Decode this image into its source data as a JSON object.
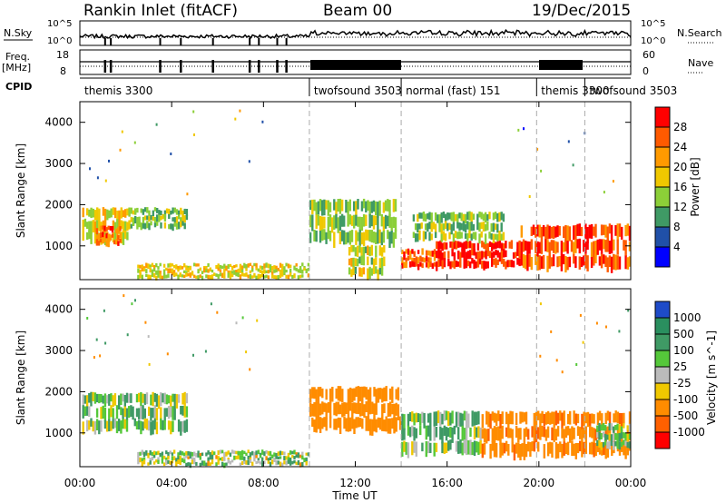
{
  "header": {
    "station": "Rankin Inlet (fitACF)",
    "beam": "Beam 00",
    "date": "19/Dec/2015"
  },
  "strip": {
    "nsky_label": "N.Sky",
    "nsky_top": "10^5",
    "nsky_bottom": "10^0",
    "nsearch_label": "N.Search",
    "nsearch_top": "10^5",
    "nsearch_bottom": "10^0",
    "freq_label": "Freq.",
    "freq_unit": "[MHz]",
    "freq_top": "18",
    "freq_bottom": "8",
    "nave_label": "Nave",
    "nave_top": "60",
    "nave_bottom": "0",
    "cpid_label": "CPID",
    "cpid_segments": [
      {
        "label": "themis 3300",
        "start": 0.0
      },
      {
        "label": "twofsound 3503",
        "start": 10.0
      },
      {
        "label": "normal (fast) 151",
        "start": 14.0
      },
      {
        "label": "themis 3300",
        "start": 19.9
      },
      {
        "label": "twofsound 3503",
        "start": 22.0
      }
    ]
  },
  "panels": {
    "power": {
      "ylabel": "Slant Range [km]",
      "colorbar_label": "Power [dB]",
      "colorbar_ticks": [
        "28",
        "24",
        "20",
        "16",
        "12",
        "8",
        "4"
      ],
      "colorbar_colors": [
        "#ff0000",
        "#ff5a00",
        "#ff9a00",
        "#f0c800",
        "#8ccf38",
        "#3f9a65",
        "#2050a8",
        "#0000ff"
      ]
    },
    "velocity": {
      "ylabel": "Slant Range [km]",
      "colorbar_label": "Velocity [m s^-1]",
      "colorbar_ticks": [
        "1000",
        "500",
        "100",
        "25",
        "-25",
        "-100",
        "-500",
        "-1000"
      ],
      "colorbar_colors": [
        "#1e4bc8",
        "#2a8f5f",
        "#3f9a65",
        "#55c83a",
        "#bbbbbb",
        "#f0c800",
        "#ff8c00",
        "#ff6000",
        "#ff0000"
      ]
    }
  },
  "xaxis": {
    "label": "Time UT",
    "ticks": [
      "00:00",
      "04:00",
      "08:00",
      "12:00",
      "16:00",
      "20:00",
      "00:00"
    ]
  },
  "chart_data": {
    "type": "heatmap",
    "x_range_hours": [
      0,
      24
    ],
    "y_range_km": [
      180,
      4500
    ],
    "yticks": [
      1000,
      2000,
      3000,
      4000
    ],
    "xlabel": "Time UT",
    "ylabel": "Slant Range [km]",
    "mode_boundaries_hours": [
      10.0,
      14.0,
      19.9,
      22.0
    ],
    "power_regions": [
      {
        "t0": 0.1,
        "t1": 2.2,
        "r0": 1050,
        "r1": 1900,
        "value_db": 18
      },
      {
        "t0": 0.7,
        "t1": 1.8,
        "r0": 1000,
        "r1": 1450,
        "value_db": 25
      },
      {
        "t0": 2.2,
        "t1": 4.7,
        "r0": 1400,
        "r1": 1900,
        "value_db": 13
      },
      {
        "t0": 2.5,
        "t1": 10.0,
        "r0": 200,
        "r1": 550,
        "value_db": 17
      },
      {
        "t0": 10.0,
        "t1": 13.8,
        "r0": 1000,
        "r1": 2100,
        "value_db": 14
      },
      {
        "t0": 11.7,
        "t1": 13.3,
        "r0": 200,
        "r1": 1000,
        "value_db": 16
      },
      {
        "t0": 14.0,
        "t1": 15.5,
        "r0": 450,
        "r1": 900,
        "value_db": 26
      },
      {
        "t0": 15.5,
        "t1": 19.2,
        "r0": 450,
        "r1": 1100,
        "value_db": 29
      },
      {
        "t0": 19.2,
        "t1": 24.0,
        "r0": 400,
        "r1": 1500,
        "value_db": 27
      },
      {
        "t0": 14.5,
        "t1": 18.5,
        "r0": 1100,
        "r1": 1800,
        "value_db": 13
      }
    ],
    "velocity_regions": [
      {
        "t0": 0.1,
        "t1": 4.7,
        "r0": 1000,
        "r1": 1950,
        "value_ms": 60
      },
      {
        "t0": 2.5,
        "t1": 10.0,
        "r0": 200,
        "r1": 550,
        "value_ms": 40
      },
      {
        "t0": 10.0,
        "t1": 14.0,
        "r0": 1000,
        "r1": 2100,
        "value_ms": -300
      },
      {
        "t0": 14.0,
        "t1": 17.5,
        "r0": 450,
        "r1": 1500,
        "value_ms": 80
      },
      {
        "t0": 17.5,
        "t1": 24.0,
        "r0": 400,
        "r1": 1500,
        "value_ms": -400
      },
      {
        "t0": 22.5,
        "t1": 24.0,
        "r0": 600,
        "r1": 1200,
        "value_ms": 60
      }
    ]
  }
}
